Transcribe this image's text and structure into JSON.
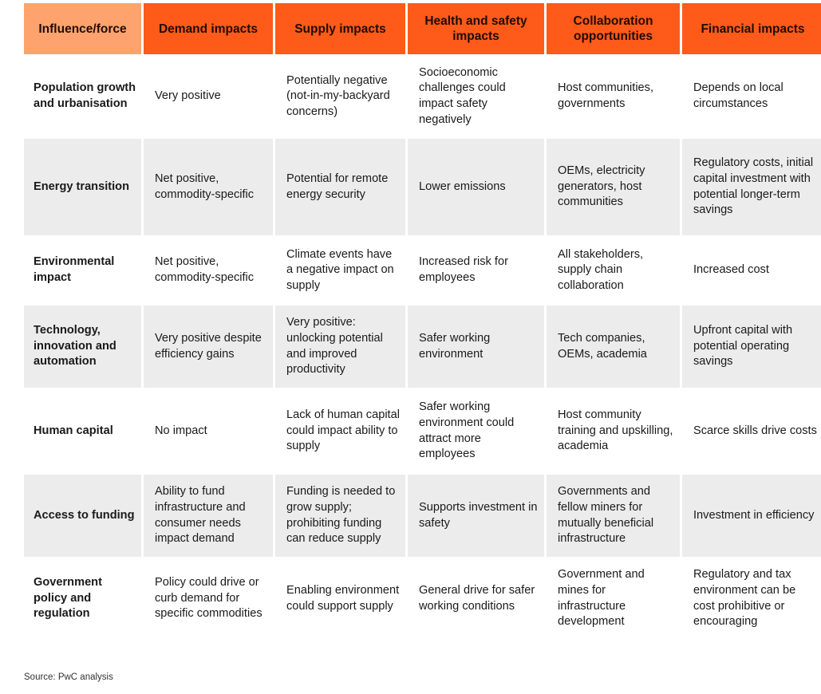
{
  "table": {
    "headers": [
      "Influence/force",
      "Demand impacts",
      "Supply impacts",
      "Health and safety impacts",
      "Collaboration opportunities",
      "Financial impacts"
    ],
    "rows": [
      [
        "Population growth and urbanisation",
        "Very positive",
        "Potentially negative (not-in-my-backyard concerns)",
        "Socioeconomic challenges could impact safety negatively",
        "Host communities, governments",
        "Depends on local circumstances"
      ],
      [
        "Energy transition",
        "Net positive, commodity-specific",
        "Potential for remote energy security",
        "Lower emissions",
        "OEMs, electricity generators, host communities",
        "Regulatory costs, initial capital investment with potential longer-term savings"
      ],
      [
        "Environmental impact",
        "Net positive, commodity-specific",
        "Climate events have a negative impact on supply",
        "Increased risk for employees",
        "All stakeholders, supply chain collaboration",
        "Increased cost"
      ],
      [
        "Technology, innovation and automation",
        "Very positive despite efficiency gains",
        "Very positive: unlocking potential and improved productivity",
        "Safer working environment",
        "Tech companies, OEMs, academia",
        "Upfront capital with potential operating savings"
      ],
      [
        "Human capital",
        "No impact",
        "Lack of human capital could impact ability to supply",
        "Safer working environment could attract more employees",
        "Host community training and upskilling, academia",
        "Scarce skills drive costs"
      ],
      [
        "Access to funding",
        "Ability to fund infrastructure and consumer needs impact demand",
        "Funding is needed to grow supply; prohibiting funding can reduce supply",
        "Supports investment in safety",
        "Governments and fellow miners for mutually beneficial infrastructure",
        "Investment in efficiency"
      ],
      [
        "Government policy and regulation",
        "Policy could drive or curb demand for specific commodities",
        "Enabling environment could support supply",
        "General drive for safer working conditions",
        "Government and mines for infrastructure development",
        "Regulatory and tax environment can be cost prohibitive or encouraging"
      ]
    ]
  },
  "source": "Source: PwC analysis",
  "colors": {
    "header_orange": "#fe5a1a",
    "header_first": "#fea36e",
    "row_shade": "#ececec"
  }
}
